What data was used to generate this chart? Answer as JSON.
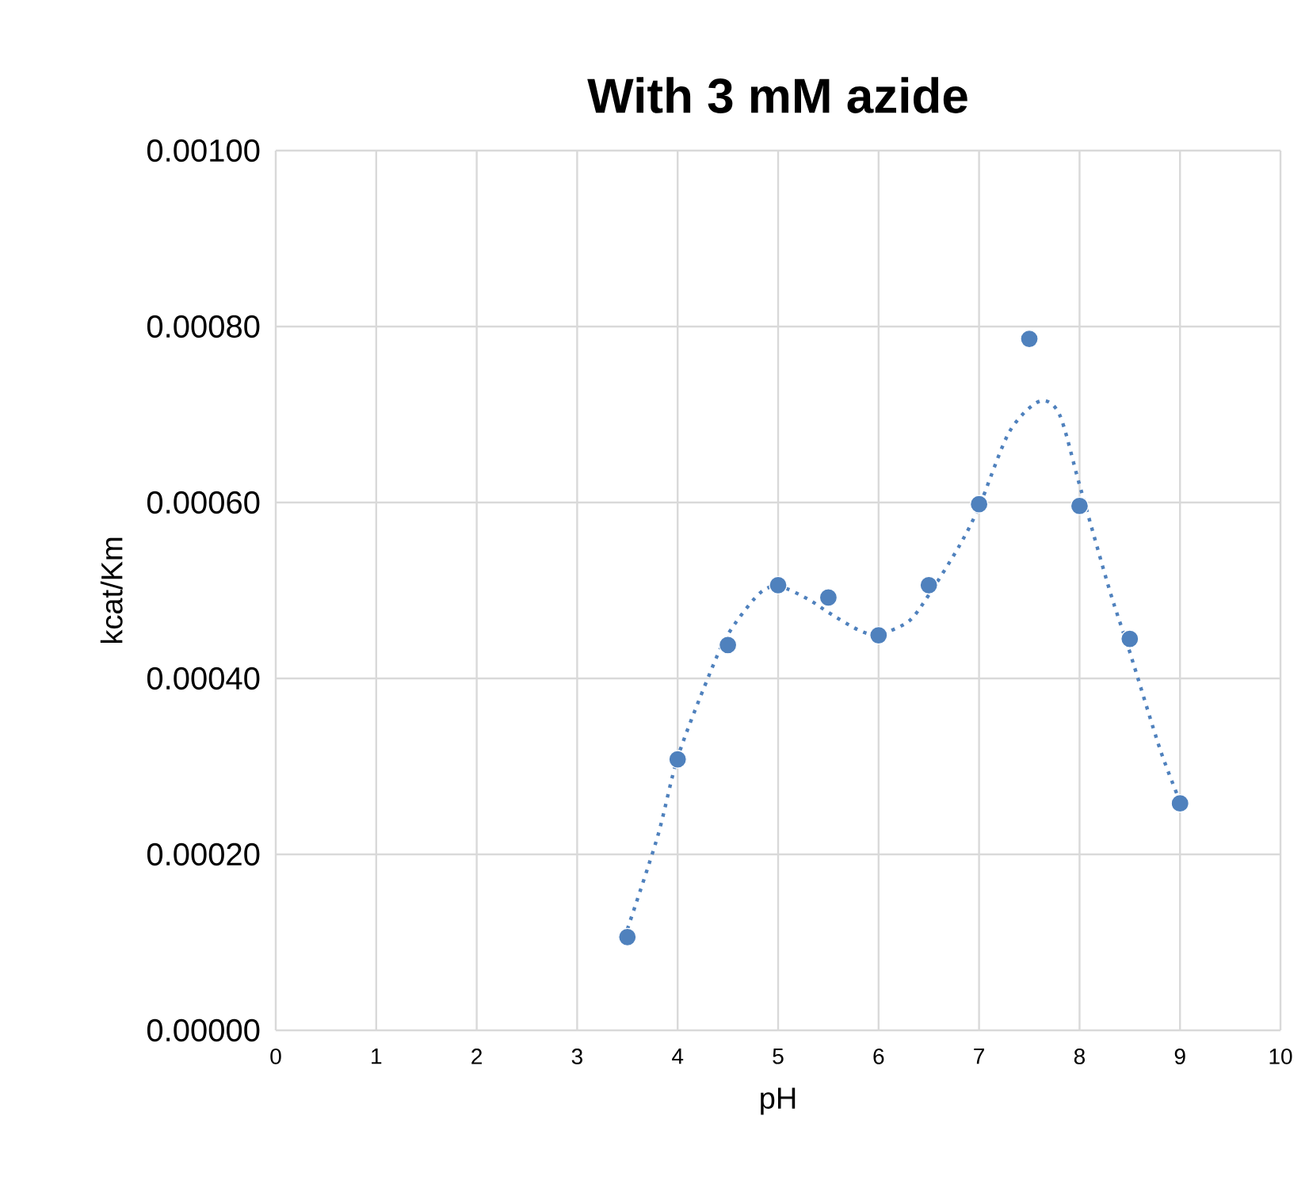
{
  "chart_data": {
    "type": "scatter",
    "title": "With 3 mM azide",
    "xlabel": "pH",
    "ylabel": "kcat/Km",
    "xlim": [
      0,
      10
    ],
    "xticks": [
      0,
      1,
      2,
      3,
      4,
      5,
      6,
      7,
      8,
      9,
      10
    ],
    "ylim": [
      0,
      0.001
    ],
    "yticks": [
      {
        "value": 0,
        "label": "0.00000"
      },
      {
        "value": 0.0002,
        "label": "0.00020"
      },
      {
        "value": 0.0004,
        "label": "0.00040"
      },
      {
        "value": 0.0006,
        "label": "0.00060"
      },
      {
        "value": 0.0008,
        "label": "0.00080"
      },
      {
        "value": 0.001,
        "label": "0.00100"
      }
    ],
    "grid": true,
    "legend": false,
    "series": [
      {
        "marker": "circle",
        "color": "#4f81bd",
        "x": [
          3.5,
          4,
          4.5,
          5,
          5.5,
          6,
          6.5,
          7,
          7.5,
          8,
          8.5,
          9
        ],
        "values": [
          0.000106,
          0.000308,
          0.000438,
          0.000506,
          0.000492,
          0.000449,
          0.000506,
          0.000598,
          0.000786,
          0.000596,
          0.000445,
          0.000258
        ]
      },
      {
        "type": "line",
        "marker": "none",
        "line_style": "dotted",
        "color": "#4f81bd",
        "x": [
          3.5,
          3.8,
          4,
          4.3,
          4.5,
          4.8,
          5,
          5.3,
          5.5,
          5.8,
          6,
          6.3,
          6.5,
          6.8,
          7,
          7.3,
          7.6,
          7.8,
          8,
          8.3,
          8.5,
          8.8,
          9
        ],
        "values": [
          0.000115,
          0.00022,
          0.00031,
          0.0004,
          0.00045,
          0.000495,
          0.000505,
          0.00049,
          0.000475,
          0.000455,
          0.00045,
          0.000465,
          0.000495,
          0.00055,
          0.000595,
          0.00068,
          0.000715,
          0.0007,
          0.00062,
          0.0005,
          0.00043,
          0.00032,
          0.00026
        ]
      }
    ]
  }
}
